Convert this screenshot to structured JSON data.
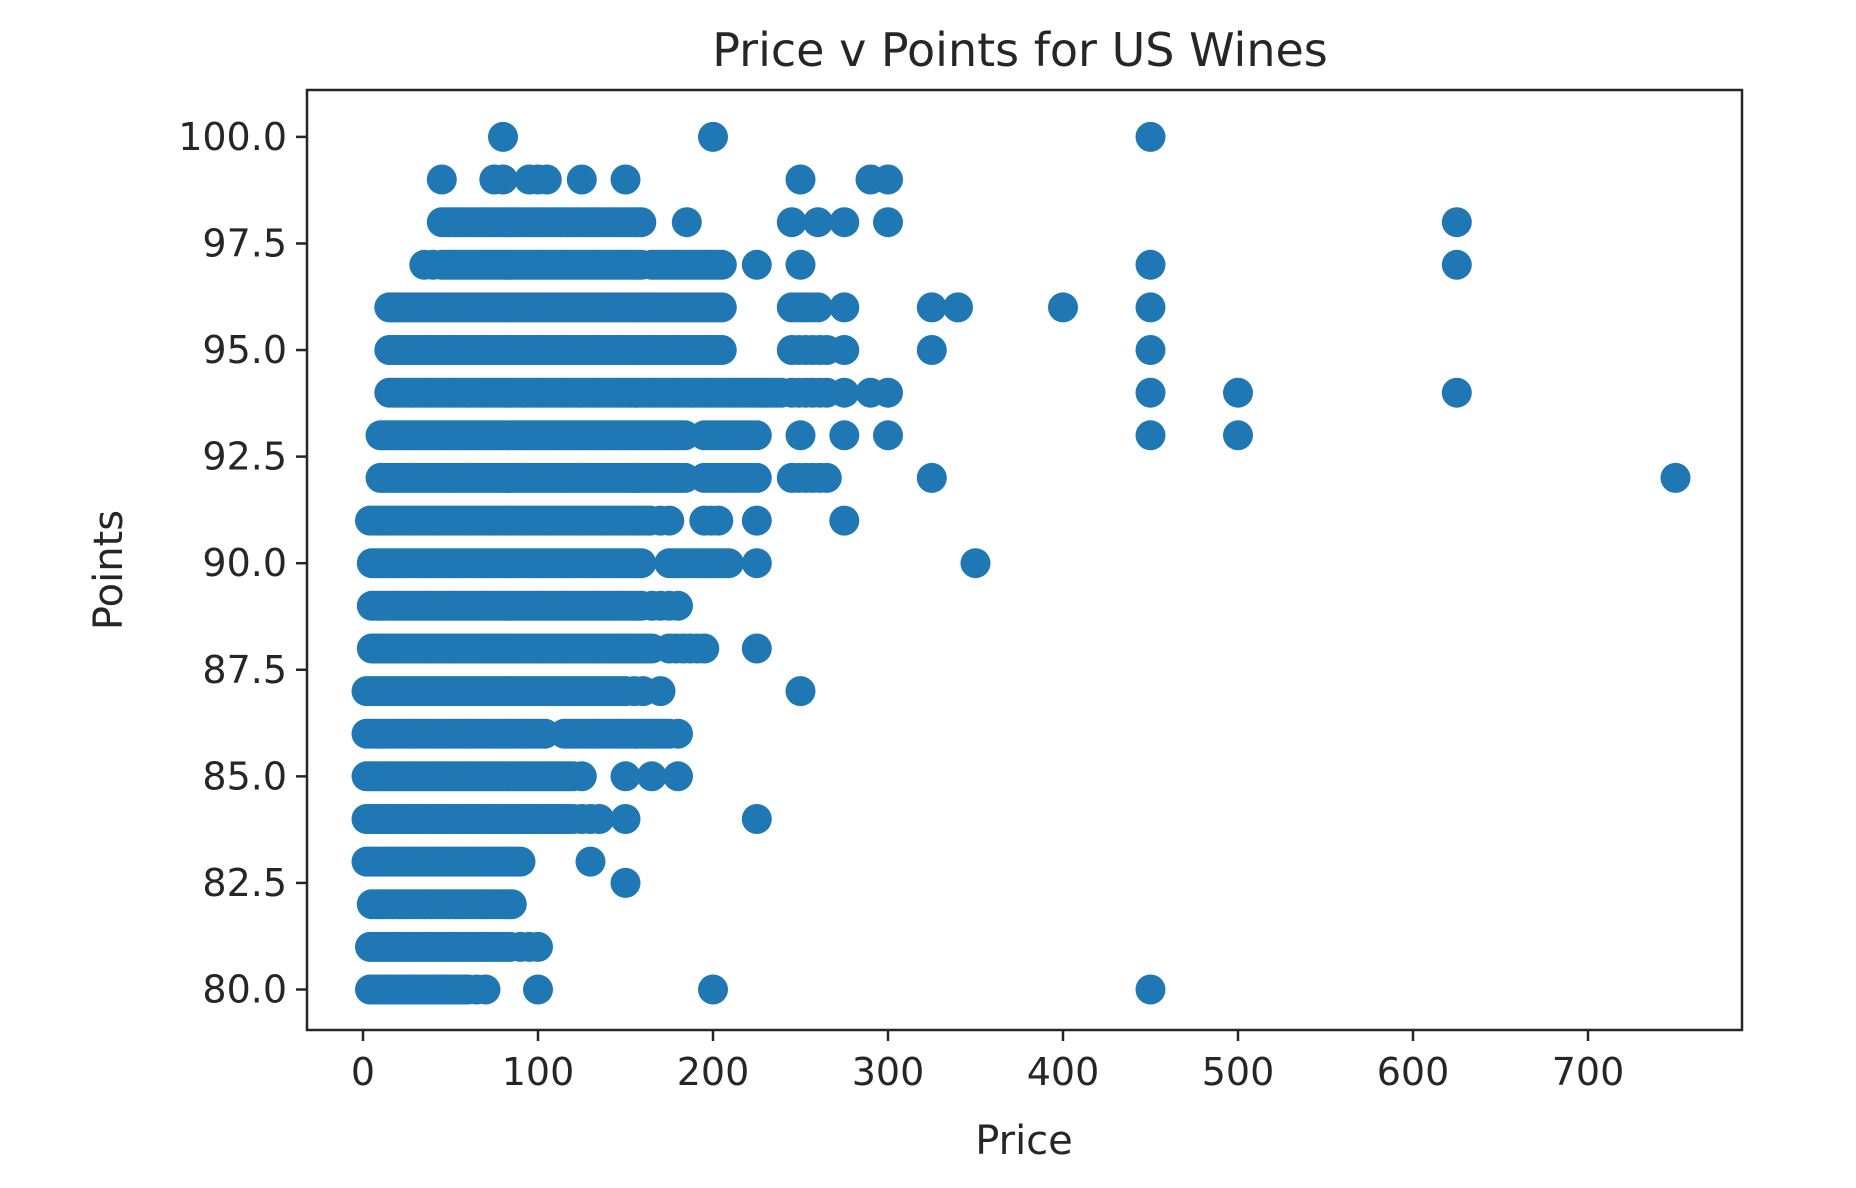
{
  "chart_data": {
    "type": "scatter",
    "title": "Price v Points for US Wines",
    "xlabel": "Price",
    "ylabel": "Points",
    "xlim": [
      -32,
      788
    ],
    "ylim": [
      79.05,
      101.1
    ],
    "xticks": [
      0,
      100,
      200,
      300,
      400,
      500,
      600,
      700
    ],
    "xtick_labels": [
      "0",
      "100",
      "200",
      "300",
      "400",
      "500",
      "600",
      "700"
    ],
    "yticks": [
      80,
      82.5,
      85,
      87.5,
      90,
      92.5,
      95,
      97.5,
      100
    ],
    "ytick_labels": [
      "80.0",
      "82.5",
      "85.0",
      "87.5",
      "90.0",
      "92.5",
      "95.0",
      "97.5",
      "100.0"
    ],
    "grid": false,
    "marker_color": "#1f77b4",
    "points_note": "dense runs at each integer point level are listed as [points, price_min, price_max, step]",
    "runs": [
      [
        80,
        4,
        60,
        2
      ],
      [
        80,
        65,
        70,
        5
      ],
      [
        81,
        4,
        85,
        2
      ],
      [
        81,
        90,
        100,
        5
      ],
      [
        82,
        5,
        85,
        2
      ],
      [
        83,
        2,
        90,
        2
      ],
      [
        84,
        2,
        120,
        2
      ],
      [
        84,
        125,
        135,
        5
      ],
      [
        85,
        2,
        120,
        2
      ],
      [
        86,
        2,
        105,
        2
      ],
      [
        86,
        115,
        175,
        2
      ],
      [
        87,
        2,
        150,
        2
      ],
      [
        87,
        155,
        160,
        5
      ],
      [
        88,
        5,
        165,
        2
      ],
      [
        88,
        175,
        195,
        4
      ],
      [
        89,
        5,
        160,
        2
      ],
      [
        89,
        165,
        180,
        5
      ],
      [
        90,
        5,
        160,
        2
      ],
      [
        90,
        175,
        210,
        2
      ],
      [
        91,
        4,
        165,
        2
      ],
      [
        91,
        170,
        175,
        5
      ],
      [
        91,
        195,
        205,
        4
      ],
      [
        92,
        10,
        185,
        2
      ],
      [
        92,
        195,
        225,
        3
      ],
      [
        92,
        245,
        265,
        4
      ],
      [
        93,
        10,
        185,
        2
      ],
      [
        93,
        195,
        225,
        3
      ],
      [
        94,
        15,
        240,
        2
      ],
      [
        94,
        245,
        265,
        4
      ],
      [
        95,
        15,
        205,
        2
      ],
      [
        95,
        245,
        265,
        4
      ],
      [
        96,
        15,
        205,
        2
      ],
      [
        96,
        245,
        260,
        3
      ],
      [
        97,
        35,
        40,
        5
      ],
      [
        97,
        45,
        160,
        2
      ],
      [
        97,
        165,
        205,
        2
      ],
      [
        98,
        45,
        160,
        2
      ],
      [
        99,
        75,
        80,
        5
      ],
      [
        99,
        95,
        105,
        5
      ]
    ],
    "points": [
      [
        80,
        100
      ],
      [
        80,
        200
      ],
      [
        80,
        450
      ],
      [
        82.5,
        150
      ],
      [
        83,
        130
      ],
      [
        84,
        150
      ],
      [
        84,
        225
      ],
      [
        85,
        125
      ],
      [
        85,
        150
      ],
      [
        85,
        165
      ],
      [
        85,
        180
      ],
      [
        86,
        180
      ],
      [
        87,
        170
      ],
      [
        87,
        250
      ],
      [
        88,
        225
      ],
      [
        90,
        225
      ],
      [
        90,
        350
      ],
      [
        91,
        225
      ],
      [
        91,
        275
      ],
      [
        92,
        325
      ],
      [
        92,
        750
      ],
      [
        93,
        250
      ],
      [
        93,
        275
      ],
      [
        93,
        300
      ],
      [
        93,
        450
      ],
      [
        93,
        500
      ],
      [
        94,
        275
      ],
      [
        94,
        290
      ],
      [
        94,
        300
      ],
      [
        94,
        450
      ],
      [
        94,
        500
      ],
      [
        94,
        625
      ],
      [
        95,
        275
      ],
      [
        95,
        325
      ],
      [
        95,
        450
      ],
      [
        96,
        275
      ],
      [
        96,
        325
      ],
      [
        96,
        340
      ],
      [
        96,
        400
      ],
      [
        96,
        450
      ],
      [
        97,
        225
      ],
      [
        97,
        250
      ],
      [
        97,
        450
      ],
      [
        97,
        625
      ],
      [
        98,
        185
      ],
      [
        98,
        245
      ],
      [
        98,
        260
      ],
      [
        98,
        275
      ],
      [
        98,
        300
      ],
      [
        98,
        625
      ],
      [
        99,
        45
      ],
      [
        99,
        125
      ],
      [
        99,
        150
      ],
      [
        99,
        250
      ],
      [
        99,
        290
      ],
      [
        99,
        300
      ],
      [
        100,
        80
      ],
      [
        100,
        200
      ],
      [
        100,
        450
      ]
    ]
  }
}
